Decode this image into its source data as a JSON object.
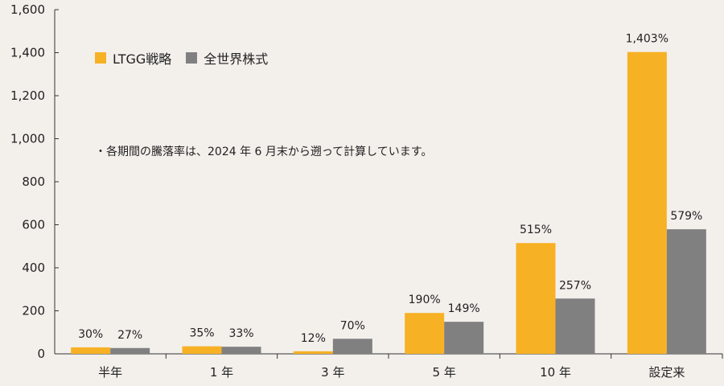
{
  "chart_data": {
    "type": "bar",
    "categories": [
      "半年",
      "1 年",
      "3 年",
      "5 年",
      "10 年",
      "設定来"
    ],
    "series": [
      {
        "name": "LTGG戦略",
        "color": "#f7b125",
        "values": [
          30,
          35,
          12,
          190,
          515,
          1403
        ],
        "labels": [
          "30%",
          "35%",
          "12%",
          "190%",
          "515%",
          "1,403%"
        ]
      },
      {
        "name": "全世界株式",
        "color": "#808080",
        "values": [
          27,
          33,
          70,
          149,
          257,
          579
        ],
        "labels": [
          "27%",
          "33%",
          "70%",
          "149%",
          "257%",
          "579%"
        ]
      }
    ],
    "ylim": [
      0,
      1600
    ],
    "yticks": [
      "0",
      "200",
      "400",
      "600",
      "800",
      "1,000",
      "1,200",
      "1,400",
      "1,600"
    ],
    "ytick_values": [
      0,
      200,
      400,
      600,
      800,
      1000,
      1200,
      1400,
      1600
    ],
    "legend_position": "top-left",
    "grid": false,
    "annotation": "・各期間の騰落率は、2024 年 6 月末から遡って計算しています。"
  }
}
